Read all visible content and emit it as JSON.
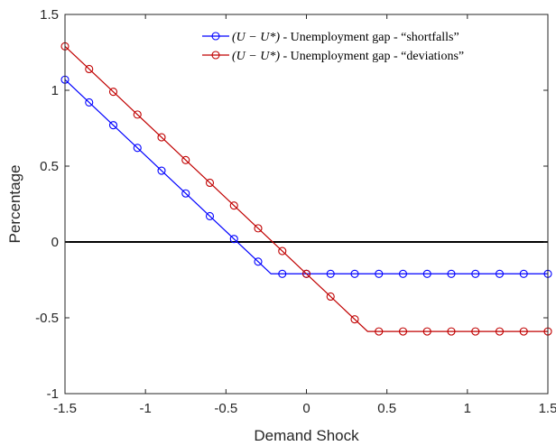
{
  "chart_data": {
    "type": "line",
    "xlabel": "Demand Shock",
    "ylabel": "Percentage",
    "xlim": [
      -1.5,
      1.5
    ],
    "ylim": [
      -1,
      1.5
    ],
    "xticks": [
      -1.5,
      -1,
      -0.5,
      0,
      0.5,
      1,
      1.5
    ],
    "xtick_labels": [
      "-1.5",
      "-1",
      "-0.5",
      "0",
      "0.5",
      "1",
      "1.5"
    ],
    "yticks": [
      -1,
      -0.5,
      0,
      0.5,
      1,
      1.5
    ],
    "ytick_labels": [
      "-1",
      "-0.5",
      "0",
      "0.5",
      "1",
      "1.5"
    ],
    "grid": false,
    "legend_position": "top-right",
    "reference_line": {
      "y": 0,
      "color": "#000000"
    },
    "series": [
      {
        "name": "(U − U*) - Unemployment gap - “shortfalls”",
        "legend_math": "(U − U*)",
        "legend_text": " - Unemployment gap - “shortfalls”",
        "color": "#0000ff",
        "x": [
          -1.5,
          -1.35,
          -1.2,
          -1.05,
          -0.9,
          -0.75,
          -0.6,
          -0.45,
          -0.3,
          -0.22,
          -0.15,
          0,
          0.15,
          0.3,
          0.45,
          0.6,
          0.75,
          0.9,
          1.05,
          1.2,
          1.35,
          1.5
        ],
        "y": [
          1.07,
          0.92,
          0.77,
          0.62,
          0.47,
          0.32,
          0.17,
          0.02,
          -0.13,
          -0.21,
          -0.21,
          -0.21,
          -0.21,
          -0.21,
          -0.21,
          -0.21,
          -0.21,
          -0.21,
          -0.21,
          -0.21,
          -0.21,
          -0.21
        ],
        "markers": [
          true,
          true,
          true,
          true,
          true,
          true,
          true,
          true,
          true,
          false,
          true,
          true,
          true,
          true,
          true,
          true,
          true,
          true,
          true,
          true,
          true,
          true
        ]
      },
      {
        "name": "(U − U*) - Unemployment gap - “deviations”",
        "legend_math": "(U − U*)",
        "legend_text": " - Unemployment gap - “deviations”",
        "color": "#c00000",
        "x": [
          -1.5,
          -1.35,
          -1.2,
          -1.05,
          -0.9,
          -0.75,
          -0.6,
          -0.45,
          -0.3,
          -0.15,
          0,
          0.15,
          0.3,
          0.38,
          0.45,
          0.6,
          0.75,
          0.9,
          1.05,
          1.2,
          1.35,
          1.5
        ],
        "y": [
          1.29,
          1.14,
          0.99,
          0.84,
          0.69,
          0.54,
          0.39,
          0.24,
          0.09,
          -0.06,
          -0.21,
          -0.36,
          -0.51,
          -0.59,
          -0.59,
          -0.59,
          -0.59,
          -0.59,
          -0.59,
          -0.59,
          -0.59,
          -0.59
        ],
        "markers": [
          true,
          true,
          true,
          true,
          true,
          true,
          true,
          true,
          true,
          true,
          true,
          true,
          true,
          false,
          true,
          true,
          true,
          true,
          true,
          true,
          true,
          true
        ]
      }
    ]
  }
}
